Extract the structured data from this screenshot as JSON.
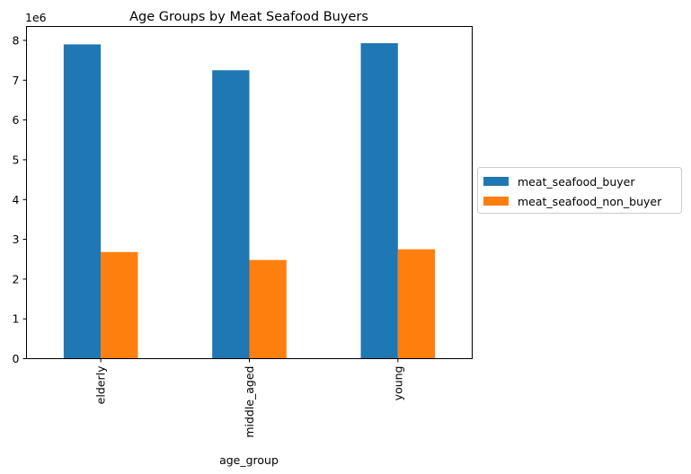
{
  "chart_data": {
    "type": "bar",
    "title": "Age Groups by Meat Seafood Buyers",
    "xlabel": "age_group",
    "ylabel": "",
    "offset_label": "1e6",
    "categories": [
      "elderly",
      "middle_aged",
      "young"
    ],
    "y_ticks": [
      0,
      1,
      2,
      3,
      4,
      5,
      6,
      7,
      8
    ],
    "ylim": [
      0,
      8.35
    ],
    "scale": 1000000,
    "series": [
      {
        "name": "meat_seafood_buyer",
        "color": "#1f77b4",
        "values": [
          7.9,
          7.25,
          7.93
        ]
      },
      {
        "name": "meat_seafood_non_buyer",
        "color": "#ff7f0e",
        "values": [
          2.68,
          2.48,
          2.75
        ]
      }
    ],
    "grid": false,
    "legend_position": "right-outside"
  }
}
